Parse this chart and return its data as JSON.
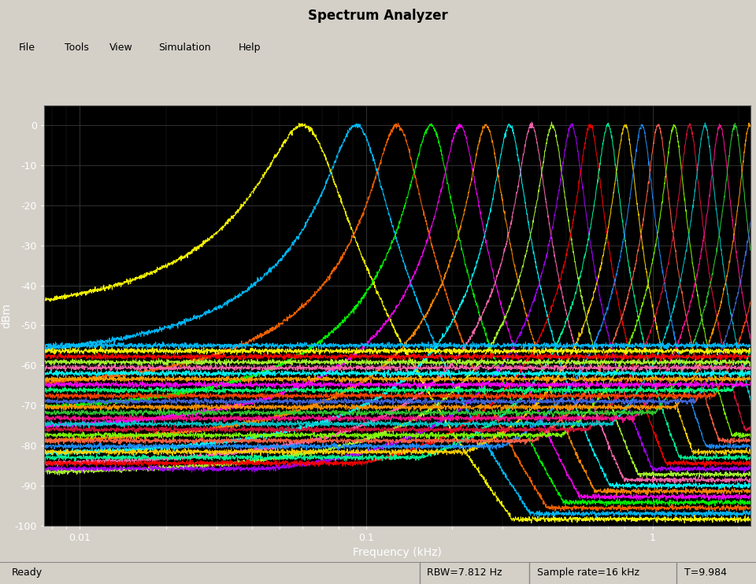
{
  "title": "Spectrum Analyzer",
  "xlabel": "Frequency (kHz)",
  "ylabel": "dBm",
  "ylim": [
    -100,
    5
  ],
  "yticks": [
    0,
    -10,
    -20,
    -30,
    -40,
    -50,
    -60,
    -70,
    -80,
    -90,
    -100
  ],
  "background_color": "#000000",
  "figure_bg": "#d4d0c8",
  "grid_color": "#333333",
  "text_color": "#ffffff",
  "status_bar": "Ready",
  "rbw": "RBW=7.812 Hz",
  "sample_rate": "Sample rate=16 kHz",
  "time": "T=9.984",
  "num_filters": 32,
  "colors": [
    "#ffff00",
    "#00bfff",
    "#ff6600",
    "#00ff00",
    "#ff00ff",
    "#ff8c00",
    "#00ffff",
    "#ff69b4",
    "#adff2f",
    "#aa00ff",
    "#ff0000",
    "#00fa9a",
    "#ffd700",
    "#1e90ff",
    "#ff6347",
    "#7fff00",
    "#dc143c",
    "#00ced1",
    "#ff1493",
    "#32cd32",
    "#ff9900",
    "#4169e1",
    "#ff4500",
    "#00ff7f",
    "#ff00ff",
    "#ffa500",
    "#00ffff",
    "#ff69b4",
    "#adff2f",
    "#ff0000",
    "#ffff00",
    "#00bfff"
  ]
}
